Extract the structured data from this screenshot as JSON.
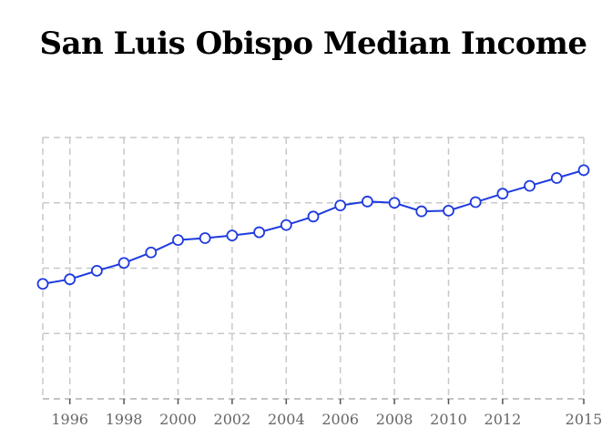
{
  "chart_data": {
    "type": "line",
    "title": "San Luis Obispo Median Income",
    "xlabel": "",
    "ylabel": "",
    "x": [
      1995,
      1996,
      1997,
      1998,
      1999,
      2000,
      2001,
      2002,
      2003,
      2004,
      2005,
      2006,
      2007,
      2008,
      2009,
      2010,
      2011,
      2012,
      2013,
      2014,
      2015
    ],
    "series": [
      {
        "name": "Median Income",
        "color": "#1f3be0",
        "values": [
          37.6,
          38.3,
          39.6,
          40.8,
          42.4,
          44.3,
          44.6,
          45.0,
          45.5,
          46.6,
          47.9,
          49.6,
          50.2,
          50.0,
          48.7,
          48.8,
          50.1,
          51.4,
          52.6,
          53.8,
          55.0
        ]
      }
    ],
    "xlim": [
      1995,
      2015
    ],
    "ylim": [
      20,
      60
    ],
    "xticks": [
      1996,
      1998,
      2000,
      2002,
      2004,
      2006,
      2008,
      2010,
      2012,
      2015
    ],
    "xtick_labels": [
      "1996",
      "1998",
      "2000",
      "2002",
      "2004",
      "2006",
      "2008",
      "2010",
      "2012",
      "2015"
    ],
    "ygrid": [
      30,
      40,
      50,
      60
    ],
    "grid": true,
    "legend": "none"
  }
}
